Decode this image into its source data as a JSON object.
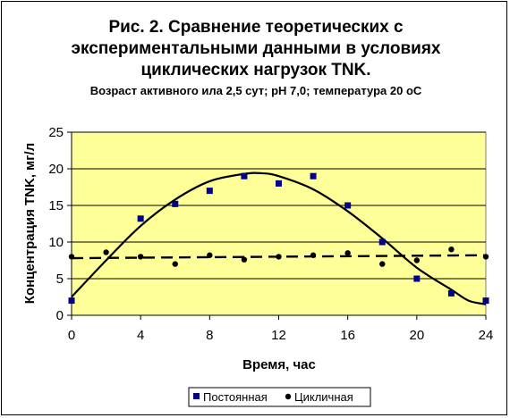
{
  "chart_data": {
    "type": "scatter",
    "title_lines": [
      "Рис. 2. Сравнение теоретических с",
      "экспериментальными данными в условиях",
      "циклических нагрузок TNK."
    ],
    "subtitle": "Возраст активного ила 2,5 сут; pH 7,0; температура 20 оС",
    "xlabel": "Время, час",
    "ylabel": "Концентрация TNK, мг/л",
    "xlim": [
      0,
      24
    ],
    "ylim": [
      0,
      25
    ],
    "x_ticks": [
      0,
      4,
      8,
      12,
      16,
      20,
      24
    ],
    "y_ticks": [
      0,
      5,
      10,
      15,
      20,
      25
    ],
    "grid": "horizontal",
    "legend_position": "bottom",
    "plot_background": "#ffff99",
    "series": [
      {
        "name": "Постоянная",
        "marker": "square",
        "color": "#00008b",
        "points": [
          [
            0,
            2
          ],
          [
            4,
            13.2
          ],
          [
            6,
            15.2
          ],
          [
            8,
            17
          ],
          [
            10,
            19
          ],
          [
            12,
            18
          ],
          [
            14,
            19
          ],
          [
            16,
            15
          ],
          [
            18,
            10
          ],
          [
            20,
            5
          ],
          [
            22,
            3
          ],
          [
            24,
            2
          ]
        ]
      },
      {
        "name": "Цикличная",
        "marker": "circle",
        "color": "#000000",
        "points": [
          [
            0,
            8
          ],
          [
            2,
            8.6
          ],
          [
            4,
            8
          ],
          [
            6,
            7
          ],
          [
            8,
            8.2
          ],
          [
            10,
            7.6
          ],
          [
            12,
            8
          ],
          [
            14,
            8.2
          ],
          [
            16,
            8.5
          ],
          [
            18,
            7
          ],
          [
            20,
            7.5
          ],
          [
            22,
            9
          ],
          [
            24,
            8
          ]
        ]
      }
    ],
    "model_curves": [
      {
        "style": "solid",
        "points": [
          [
            0,
            2.5
          ],
          [
            2,
            7.5
          ],
          [
            4,
            12.2
          ],
          [
            6,
            15.8
          ],
          [
            8,
            18.3
          ],
          [
            10,
            19.3
          ],
          [
            11,
            19.4
          ],
          [
            12,
            19
          ],
          [
            14,
            17.2
          ],
          [
            16,
            14.2
          ],
          [
            18,
            10.5
          ],
          [
            20,
            6.5
          ],
          [
            22,
            3.5
          ],
          [
            23,
            2
          ],
          [
            24,
            1.5
          ]
        ]
      },
      {
        "style": "dashed",
        "points": [
          [
            0,
            7.8
          ],
          [
            24,
            8.2
          ]
        ]
      }
    ]
  }
}
